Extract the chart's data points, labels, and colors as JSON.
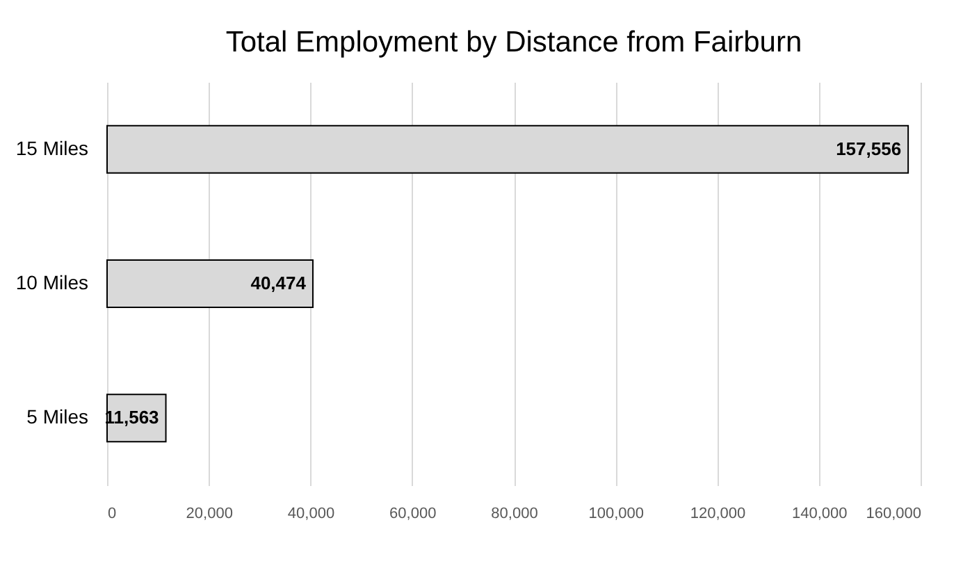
{
  "chart_data": {
    "type": "bar",
    "orientation": "horizontal",
    "title": "Total Employment by Distance from Fairburn",
    "categories": [
      "15 Miles",
      "10 Miles",
      "5 Miles"
    ],
    "values": [
      157556,
      40474,
      11563
    ],
    "value_labels": [
      "157,556",
      "40,474",
      "11,563"
    ],
    "color": "#d9d9d9",
    "xlim": [
      0,
      160000
    ],
    "xticks": [
      0,
      {
        "value": 20000,
        "label": "20,000"
      },
      {
        "value": 40000,
        "label": "40,000"
      },
      {
        "value": 60000,
        "label": "60,000"
      },
      {
        "value": 80000,
        "label": "80,000"
      },
      {
        "value": 100000,
        "label": "100,000"
      },
      {
        "value": 120000,
        "label": "120,000"
      },
      {
        "value": 140000,
        "label": "140,000"
      },
      {
        "value": 160000,
        "label": "160,000"
      }
    ],
    "grid": "x"
  }
}
